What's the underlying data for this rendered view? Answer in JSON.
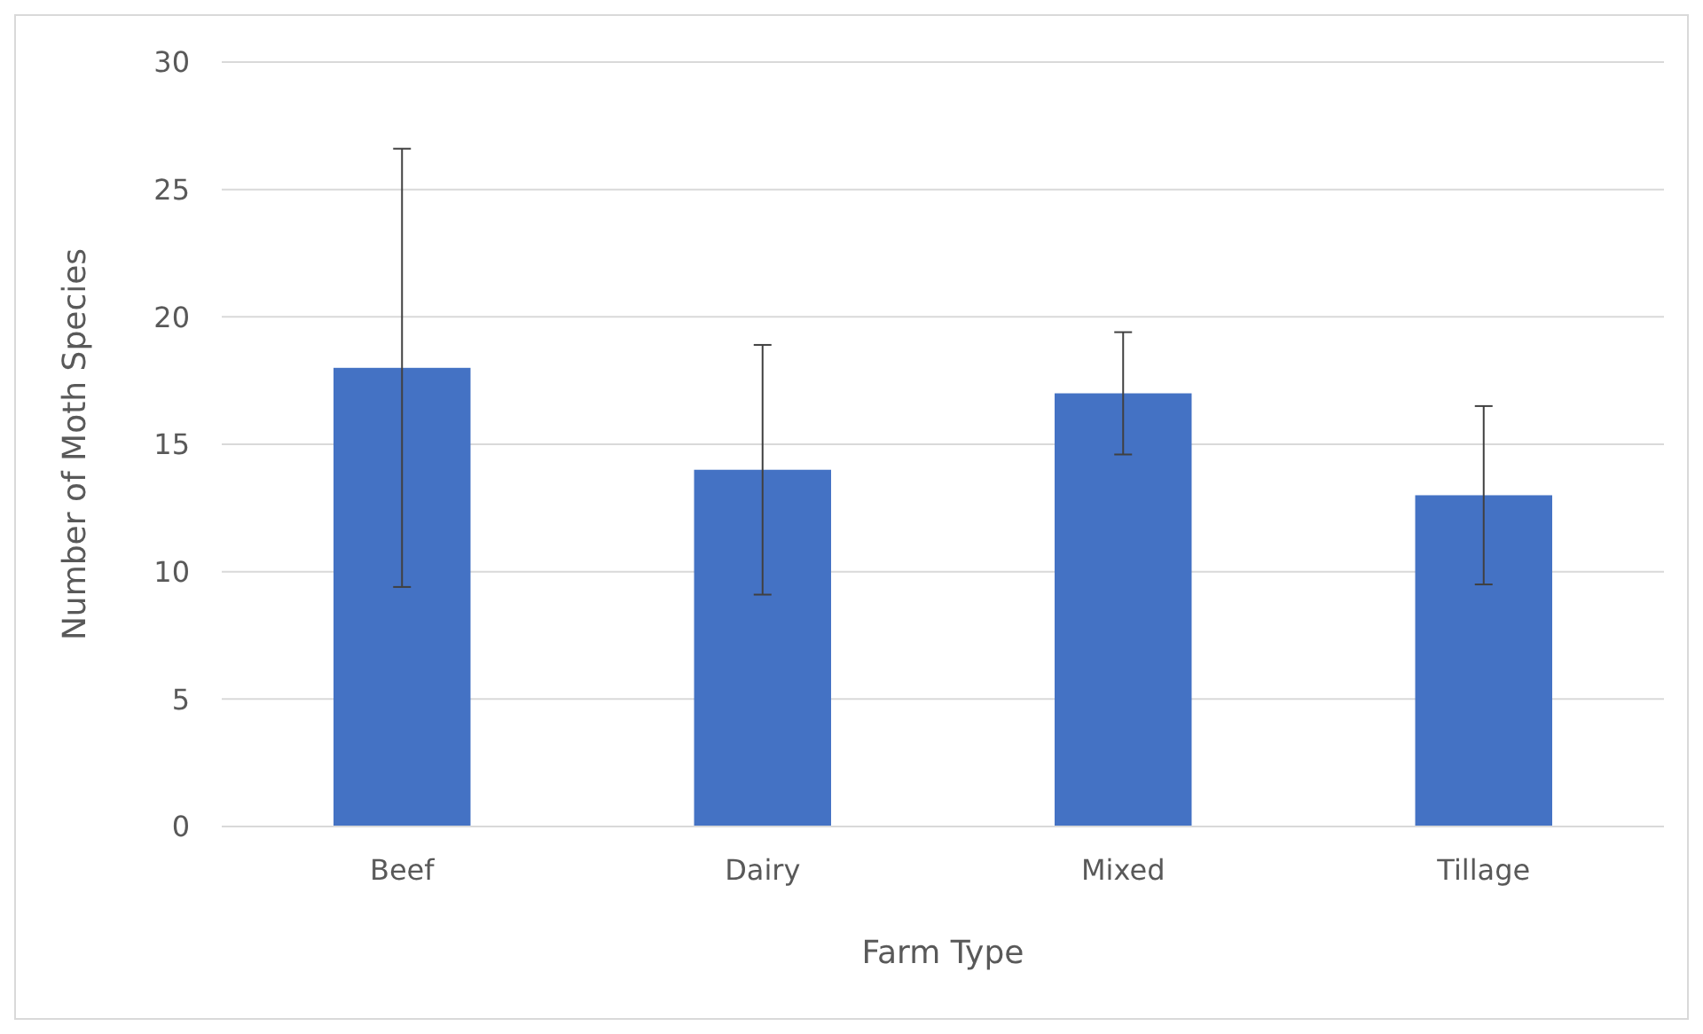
{
  "chart_data": {
    "type": "bar",
    "xlabel": "Farm Type",
    "ylabel": "Number of Moth Species",
    "categories": [
      "Beef",
      "Dairy",
      "Mixed",
      "Tillage"
    ],
    "values": [
      18,
      14,
      17,
      13
    ],
    "errors": [
      8.6,
      4.9,
      2.4,
      3.5
    ],
    "color": "#4472c4",
    "ylim": [
      0,
      30
    ],
    "yticks": [
      0,
      5,
      10,
      15,
      20,
      25,
      30
    ],
    "grid": "y"
  }
}
